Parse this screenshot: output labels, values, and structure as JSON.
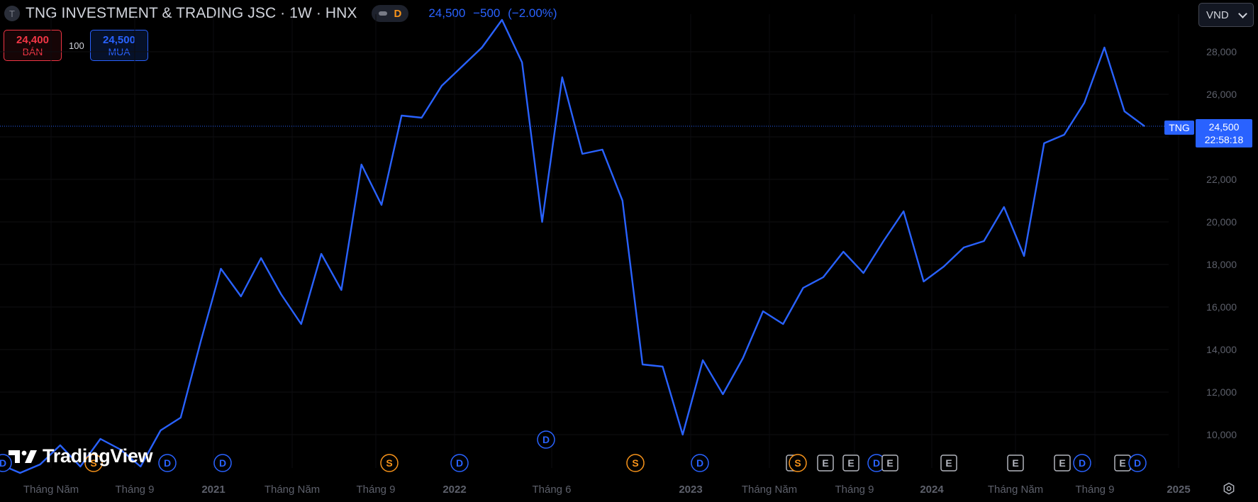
{
  "header": {
    "symbol_logo_letter": "T",
    "title": "TNG INVESTMENT & TRADING JSC · 1W · HNX",
    "pill_letter": "D",
    "price": "24,500",
    "change": "−500",
    "change_pct": "(−2.00%)"
  },
  "trade": {
    "sell_price": "24,400",
    "sell_label": "BÁN",
    "quantity": "100",
    "buy_price": "24,500",
    "buy_label": "MUA"
  },
  "currency": {
    "selected": "VND"
  },
  "price_label": {
    "symbol": "TNG",
    "price": "24,500",
    "countdown": "22:58:18"
  },
  "axis": {
    "y_ticks": [
      "28,000",
      "26,000",
      "24,000",
      "22,000",
      "20,000",
      "18,000",
      "16,000",
      "14,000",
      "12,000",
      "10,000"
    ],
    "x_ticks": [
      "Tháng Năm",
      "Tháng 9",
      "2021",
      "Tháng Năm",
      "Tháng 9",
      "2022",
      "Tháng 6",
      "2023",
      "Tháng Năm",
      "Tháng 9",
      "2024",
      "Tháng Năm",
      "Tháng 9",
      "2025"
    ]
  },
  "markers": [
    {
      "letter": "D",
      "color": "#2962ff"
    },
    {
      "letter": "S",
      "color": "#f7931a"
    },
    {
      "letter": "D",
      "color": "#2962ff"
    },
    {
      "letter": "D",
      "color": "#2962ff"
    },
    {
      "letter": "S",
      "color": "#f7931a"
    },
    {
      "letter": "D",
      "color": "#2962ff"
    },
    {
      "letter": "D",
      "color": "#2962ff"
    },
    {
      "letter": "S",
      "color": "#f7931a"
    },
    {
      "letter": "D",
      "color": "#2962ff"
    },
    {
      "letter": "E",
      "color": "#b2b5be"
    },
    {
      "letter": "E",
      "color": "#b2b5be"
    },
    {
      "letter": "S",
      "color": "#f7931a"
    },
    {
      "letter": "E",
      "color": "#b2b5be"
    },
    {
      "letter": "D",
      "color": "#2962ff"
    },
    {
      "letter": "E",
      "color": "#b2b5be"
    },
    {
      "letter": "E",
      "color": "#b2b5be"
    },
    {
      "letter": "E",
      "color": "#b2b5be"
    },
    {
      "letter": "E",
      "color": "#b2b5be"
    },
    {
      "letter": "D",
      "color": "#2962ff"
    },
    {
      "letter": "E",
      "color": "#b2b5be"
    },
    {
      "letter": "D",
      "color": "#2962ff"
    }
  ],
  "branding": {
    "logo_text": "TradingView"
  },
  "colors": {
    "line": "#2962ff",
    "background": "#000000",
    "axis_text": "#5d606b"
  },
  "chart_data": {
    "type": "line",
    "title": "TNG INVESTMENT & TRADING JSC · 1W · HNX",
    "series": [
      {
        "name": "TNG",
        "x": [
          "2020-03",
          "2020-04",
          "2020-05",
          "2020-06",
          "2020-07",
          "2020-08",
          "2020-09",
          "2020-10",
          "2020-11",
          "2020-12",
          "2021-01",
          "2021-02",
          "2021-03",
          "2021-04",
          "2021-05",
          "2021-06",
          "2021-07",
          "2021-08",
          "2021-09",
          "2021-10",
          "2021-11",
          "2021-12",
          "2022-01",
          "2022-02",
          "2022-03",
          "2022-04",
          "2022-05",
          "2022-06",
          "2022-07",
          "2022-08",
          "2022-09",
          "2022-10",
          "2022-11",
          "2022-12",
          "2023-01",
          "2023-02",
          "2023-03",
          "2023-04",
          "2023-05",
          "2023-06",
          "2023-07",
          "2023-08",
          "2023-09",
          "2023-10",
          "2023-11",
          "2023-12",
          "2024-01",
          "2024-02",
          "2024-03",
          "2024-04",
          "2024-05",
          "2024-06",
          "2024-07",
          "2024-08",
          "2024-09",
          "2024-10",
          "2024-11",
          "2024-12"
        ],
        "values": [
          8600,
          8200,
          8600,
          9500,
          8500,
          9800,
          9300,
          8500,
          10200,
          10800,
          14400,
          17800,
          16500,
          18300,
          16600,
          15200,
          18500,
          16800,
          22700,
          20800,
          25000,
          24900,
          26400,
          27300,
          28200,
          29500,
          27500,
          20000,
          26800,
          23200,
          23400,
          21000,
          13300,
          13200,
          10000,
          13500,
          11900,
          13600,
          15800,
          15200,
          16900,
          17400,
          18600,
          17600,
          19100,
          20500,
          17200,
          17900,
          18800,
          19100,
          20700,
          18400,
          23700,
          24100,
          25600,
          28200,
          25200,
          24500
        ]
      }
    ],
    "ylim": [
      8000,
      30000
    ],
    "y_scale": "linear",
    "grid": true,
    "last_value": 24500
  }
}
